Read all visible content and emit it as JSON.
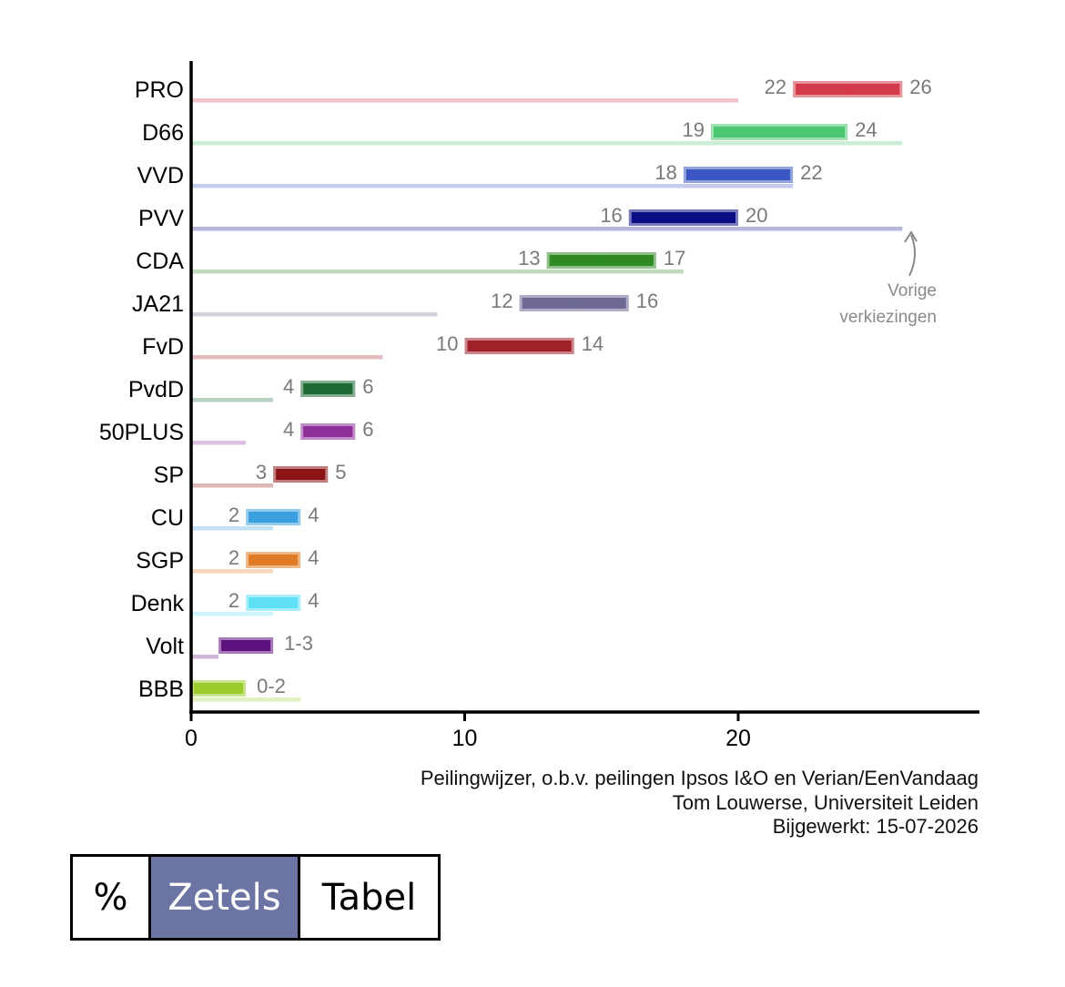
{
  "chart_data": {
    "type": "range-bar",
    "xlim": [
      0,
      29
    ],
    "x_ticks": [
      "0",
      "10",
      "20"
    ],
    "grid": false,
    "parties": [
      {
        "name": "PRO",
        "low": 22,
        "high": 26,
        "label_low": "22",
        "label_high": "26",
        "previous": 20,
        "color": "#d33a4b"
      },
      {
        "name": "D66",
        "low": 19,
        "high": 24,
        "label_low": "19",
        "label_high": "24",
        "previous": 26,
        "color": "#4cc875"
      },
      {
        "name": "VVD",
        "low": 18,
        "high": 22,
        "label_low": "18",
        "label_high": "22",
        "previous": 22,
        "color": "#3b57c4"
      },
      {
        "name": "PVV",
        "low": 16,
        "high": 20,
        "label_low": "16",
        "label_high": "20",
        "previous": 26,
        "color": "#0b0d83"
      },
      {
        "name": "CDA",
        "low": 13,
        "high": 17,
        "label_low": "13",
        "label_high": "17",
        "previous": 18,
        "color": "#2f8a23"
      },
      {
        "name": "JA21",
        "low": 12,
        "high": 16,
        "label_low": "12",
        "label_high": "16",
        "previous": 9,
        "color": "#6e6a95"
      },
      {
        "name": "FvD",
        "low": 10,
        "high": 14,
        "label_low": "10",
        "label_high": "14",
        "previous": 7,
        "color": "#a1212a"
      },
      {
        "name": "PvdD",
        "low": 4,
        "high": 6,
        "label_low": "4",
        "label_high": "6",
        "previous": 3,
        "color": "#1f6a34"
      },
      {
        "name": "50PLUS",
        "low": 4,
        "high": 6,
        "label_low": "4",
        "label_high": "6",
        "previous": 2,
        "color": "#8e2f9a"
      },
      {
        "name": "SP",
        "low": 3,
        "high": 5,
        "label_low": "3",
        "label_high": "5",
        "previous": 3,
        "color": "#8a1414"
      },
      {
        "name": "CU",
        "low": 2,
        "high": 4,
        "label_low": "2",
        "label_high": "4",
        "previous": 3,
        "color": "#3ba0e0"
      },
      {
        "name": "SGP",
        "low": 2,
        "high": 4,
        "label_low": "2",
        "label_high": "4",
        "previous": 3,
        "color": "#e07b25"
      },
      {
        "name": "Denk",
        "low": 2,
        "high": 4,
        "label_low": "2",
        "label_high": "4",
        "previous": 3,
        "color": "#5fe0f5"
      },
      {
        "name": "Volt",
        "low": 1,
        "high": 3,
        "label_low": "",
        "label_high": "1-3",
        "previous": 1,
        "color": "#5c117e"
      },
      {
        "name": "BBB",
        "low": 0,
        "high": 2,
        "label_low": "",
        "label_high": "0-2",
        "previous": 4,
        "color": "#9acc2e"
      }
    ],
    "annotation": {
      "line1": "Vorige",
      "line2": "verkiezingen",
      "points_to": "PVV"
    }
  },
  "source": {
    "line1": "Peilingwijzer, o.b.v. peilingen Ipsos I&O en Verian/EenVandaag",
    "line2": "Tom Louwerse, Universiteit Leiden",
    "line3": "Bijgewerkt: 15-07-2026"
  },
  "tabs": {
    "percent": "%",
    "seats": "Zetels",
    "table": "Tabel",
    "active": "seats"
  }
}
